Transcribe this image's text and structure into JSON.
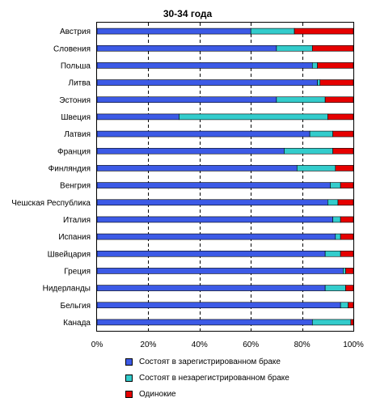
{
  "chart_data": {
    "type": "bar",
    "orientation": "horizontal",
    "stacked": true,
    "percent": true,
    "title": "30-34 года",
    "categories": [
      "Австрия",
      "Словения",
      "Польша",
      "Литва",
      "Эстония",
      "Швеция",
      "Латвия",
      "Франция",
      "Финляндия",
      "Венгрия",
      "Чешская Республика",
      "Италия",
      "Испания",
      "Швейцария",
      "Греция",
      "Нидерланды",
      "Бельгия",
      "Канада"
    ],
    "series": [
      {
        "name": "Состоят в зарегистрированном браке",
        "color": "#3c5ae6",
        "values": [
          60,
          70,
          84,
          86,
          70,
          32,
          83,
          73,
          78,
          91,
          90,
          92,
          93,
          89,
          96,
          89,
          95,
          84
        ]
      },
      {
        "name": "Состоят в незарегистрированном браке",
        "color": "#33cccc",
        "values": [
          17,
          14,
          2,
          1,
          19,
          58,
          9,
          19,
          15,
          4,
          4,
          3,
          2,
          6,
          1,
          8,
          3,
          15
        ]
      },
      {
        "name": "Одинокие",
        "color": "#e60000",
        "values": [
          23,
          16,
          14,
          13,
          11,
          10,
          8,
          8,
          7,
          5,
          6,
          5,
          5,
          5,
          3,
          3,
          2,
          1
        ]
      }
    ],
    "xlim": [
      0,
      100
    ],
    "xticks": [
      "0%",
      "20%",
      "40%",
      "60%",
      "80%",
      "100%"
    ],
    "grid": true,
    "legend_position": "bottom"
  }
}
